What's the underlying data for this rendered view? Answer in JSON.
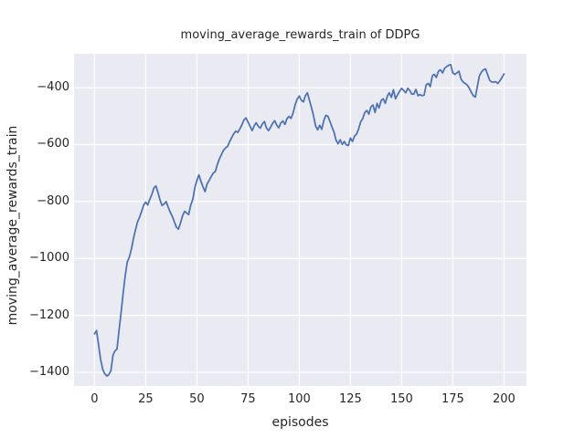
{
  "chart_data": {
    "type": "line",
    "title": "moving_average_rewards_train of DDPG",
    "xlabel": "episodes",
    "ylabel": "moving_average_rewards_train",
    "x_ticks": [
      0,
      25,
      50,
      75,
      100,
      125,
      150,
      175,
      200
    ],
    "y_ticks": [
      -400,
      -600,
      -800,
      -1000,
      -1200,
      -1400
    ],
    "xlim": [
      -10,
      211
    ],
    "ylim": [
      -1448,
      -281
    ],
    "grid": true,
    "legend": false,
    "colors": {
      "line": "#4C72B0",
      "plot_background": "#EAEAF2",
      "grid": "#FFFFFF",
      "text": "#262626",
      "figure_background": "#FFFFFF"
    },
    "series": [
      {
        "name": "DDPG moving average rewards (train)",
        "x_start": 0,
        "x_step": 1,
        "values": [
          -1265,
          -1253,
          -1305,
          -1355,
          -1390,
          -1405,
          -1413,
          -1408,
          -1395,
          -1340,
          -1325,
          -1318,
          -1250,
          -1190,
          -1120,
          -1060,
          -1013,
          -995,
          -968,
          -930,
          -900,
          -872,
          -855,
          -835,
          -812,
          -802,
          -812,
          -792,
          -775,
          -752,
          -745,
          -768,
          -795,
          -814,
          -808,
          -800,
          -820,
          -838,
          -852,
          -872,
          -890,
          -897,
          -875,
          -850,
          -834,
          -840,
          -846,
          -812,
          -793,
          -752,
          -726,
          -706,
          -730,
          -748,
          -765,
          -738,
          -726,
          -712,
          -700,
          -695,
          -670,
          -650,
          -635,
          -620,
          -612,
          -606,
          -590,
          -575,
          -562,
          -553,
          -557,
          -545,
          -530,
          -513,
          -506,
          -521,
          -536,
          -551,
          -534,
          -523,
          -536,
          -542,
          -527,
          -519,
          -541,
          -551,
          -539,
          -525,
          -516,
          -531,
          -541,
          -524,
          -517,
          -529,
          -509,
          -501,
          -508,
          -488,
          -460,
          -440,
          -429,
          -444,
          -450,
          -428,
          -418,
          -445,
          -470,
          -500,
          -535,
          -548,
          -532,
          -546,
          -515,
          -497,
          -500,
          -519,
          -538,
          -557,
          -585,
          -597,
          -583,
          -599,
          -589,
          -601,
          -603,
          -577,
          -589,
          -570,
          -563,
          -545,
          -520,
          -509,
          -487,
          -480,
          -493,
          -467,
          -461,
          -487,
          -455,
          -471,
          -445,
          -439,
          -455,
          -430,
          -418,
          -434,
          -407,
          -439,
          -425,
          -413,
          -402,
          -410,
          -418,
          -402,
          -410,
          -423,
          -422,
          -406,
          -428,
          -424,
          -428,
          -426,
          -390,
          -385,
          -396,
          -358,
          -353,
          -364,
          -342,
          -337,
          -348,
          -332,
          -326,
          -321,
          -319,
          -348,
          -353,
          -348,
          -342,
          -369,
          -380,
          -385,
          -390,
          -401,
          -415,
          -428,
          -433,
          -396,
          -358,
          -345,
          -337,
          -334,
          -353,
          -374,
          -380,
          -380,
          -379,
          -385,
          -376,
          -364,
          -352
        ]
      }
    ]
  }
}
